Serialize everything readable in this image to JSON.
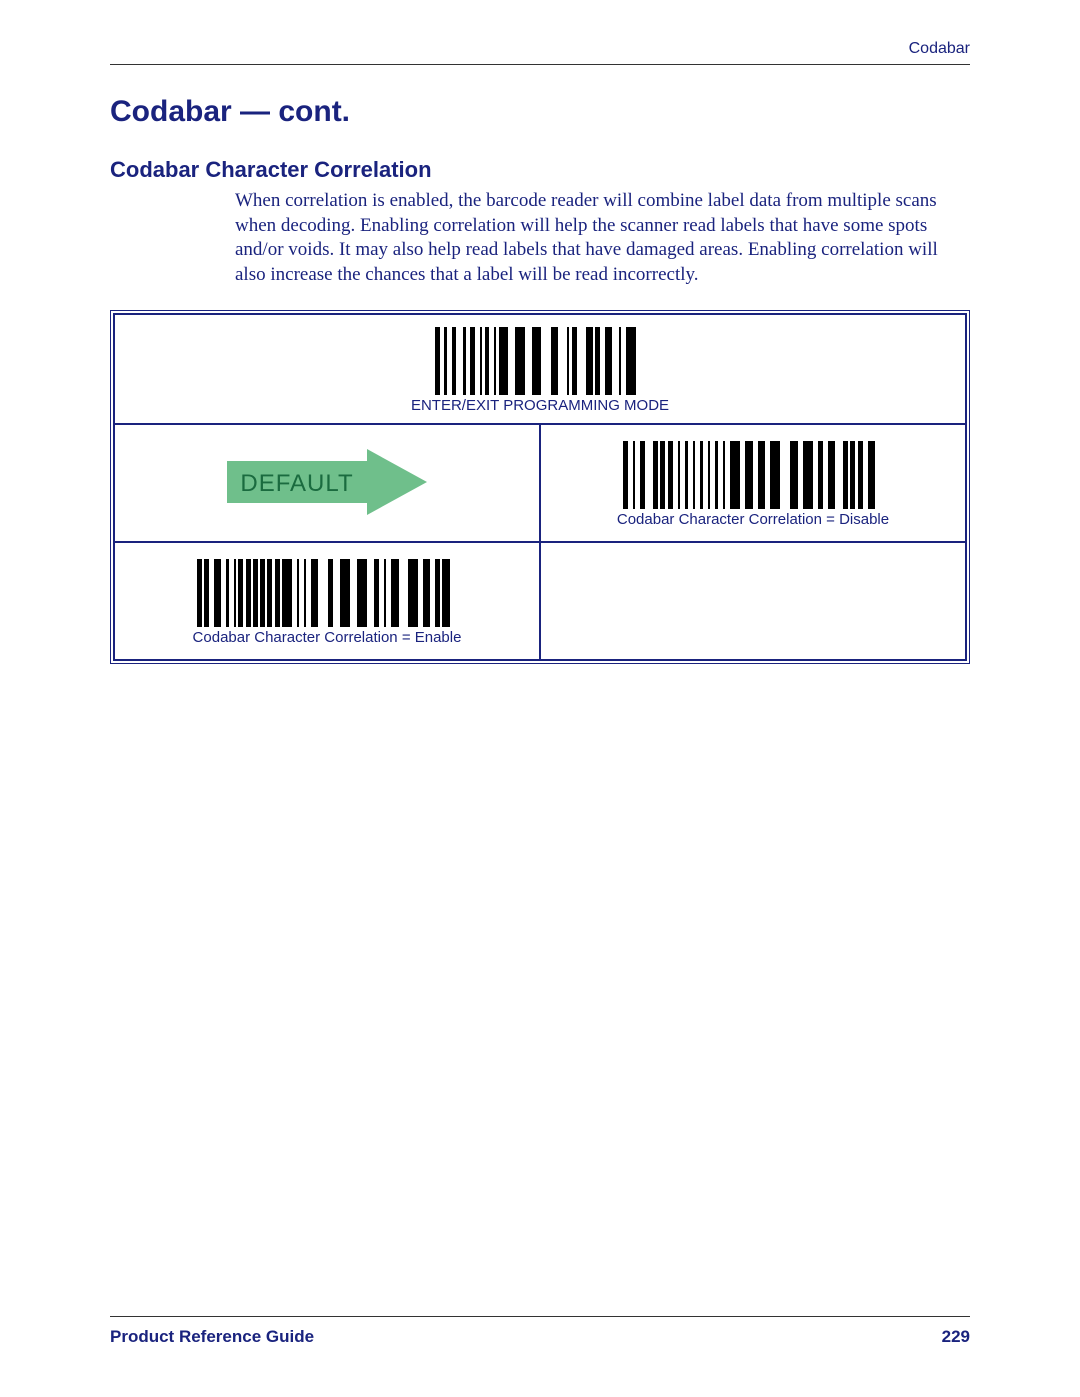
{
  "header": {
    "right_label": "Codabar"
  },
  "title": "Codabar — cont.",
  "section": {
    "heading": "Codabar Character Correlation",
    "body": "When correlation is enabled, the barcode reader will combine label data from multiple scans when decoding. Enabling correlation will help the scanner read labels that have some spots and/or voids. It may also help read labels that have damaged areas. Enabling correlation will also increase the chances that a label will be read incorrectly."
  },
  "table": {
    "top_barcode_label": "ENTER/EXIT PROGRAMMING MODE",
    "default_badge": {
      "text": "DEFAULT",
      "fill_color": "#6fbf8b",
      "text_color": "#1a6b3f",
      "font_size": 24
    },
    "disable_label": "Codabar Character Correlation = Disable",
    "enable_label": "Codabar Character Correlation = Enable"
  },
  "footer": {
    "left": "Product Reference Guide",
    "page": "229"
  },
  "style": {
    "accent_color": "#1a237e",
    "background_color": "#ffffff",
    "body_font_size": 19,
    "h1_font_size": 30,
    "h2_font_size": 22,
    "barcode_color": "#000000",
    "barcode_height_top": 68,
    "barcode_height_option": 68,
    "barcode_top_width": 210,
    "barcode_option_width": 260
  },
  "barcodes": {
    "top_pattern": [
      2,
      2,
      1,
      2,
      2,
      3,
      1,
      2,
      2,
      2,
      1,
      1,
      2,
      2,
      1,
      1,
      4,
      3,
      4,
      3,
      4,
      4,
      3,
      4,
      1,
      1,
      2,
      4,
      3,
      1,
      2,
      2,
      3,
      3,
      1,
      2,
      4,
      4
    ],
    "disable_pattern": [
      2,
      2,
      1,
      2,
      2,
      3,
      2,
      1,
      2,
      1,
      2,
      2,
      1,
      2,
      1,
      2,
      1,
      2,
      1,
      2,
      1,
      2,
      1,
      2,
      1,
      2,
      4,
      2,
      3,
      2,
      3,
      2,
      4,
      4,
      3,
      2,
      4,
      2,
      2,
      2,
      3,
      3,
      2,
      1,
      2,
      1,
      2,
      2,
      3,
      3
    ],
    "enable_pattern": [
      2,
      1,
      2,
      2,
      3,
      2,
      1,
      2,
      1,
      1,
      2,
      1,
      2,
      1,
      2,
      1,
      2,
      1,
      2,
      1,
      2,
      1,
      4,
      2,
      1,
      2,
      1,
      2,
      3,
      4,
      2,
      3,
      4,
      3,
      4,
      3,
      2,
      2,
      1,
      2,
      3,
      4,
      4,
      2,
      3,
      2,
      2,
      1,
      3,
      3
    ]
  }
}
